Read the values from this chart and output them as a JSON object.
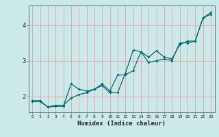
{
  "title": "",
  "xlabel": "Humidex (Indice chaleur)",
  "background_color": "#cce9e9",
  "grid_color": "#e8a0a0",
  "line_color": "#006b6b",
  "xlim": [
    -0.5,
    23.5
  ],
  "ylim": [
    1.55,
    4.55
  ],
  "yticks": [
    2,
    3,
    4
  ],
  "xticks": [
    0,
    1,
    2,
    3,
    4,
    5,
    6,
    7,
    8,
    9,
    10,
    11,
    12,
    13,
    14,
    15,
    16,
    17,
    18,
    19,
    20,
    21,
    22,
    23
  ],
  "line1_x": [
    0,
    1,
    2,
    3,
    4,
    5,
    6,
    7,
    8,
    9,
    10,
    11,
    12,
    13,
    14,
    15,
    16,
    17,
    18,
    19,
    20,
    21,
    22,
    23
  ],
  "line1_y": [
    1.85,
    1.85,
    1.7,
    1.72,
    1.72,
    2.35,
    2.2,
    2.15,
    2.2,
    2.3,
    2.1,
    2.1,
    2.65,
    3.3,
    3.25,
    2.95,
    3.0,
    3.05,
    3.0,
    3.5,
    3.5,
    3.55,
    4.2,
    4.3
  ],
  "line2_x": [
    0,
    1,
    2,
    3,
    4,
    5,
    6,
    7,
    8,
    9,
    10,
    11,
    12,
    13,
    14,
    15,
    16,
    17,
    18,
    19,
    20,
    21,
    22,
    23
  ],
  "line2_y": [
    1.88,
    1.88,
    1.7,
    1.75,
    1.75,
    1.95,
    2.05,
    2.1,
    2.2,
    2.35,
    2.15,
    2.6,
    2.6,
    2.72,
    3.25,
    3.1,
    3.28,
    3.1,
    3.05,
    3.45,
    3.55,
    3.55,
    4.2,
    4.35
  ],
  "figsize": [
    3.2,
    2.0
  ],
  "dpi": 100
}
